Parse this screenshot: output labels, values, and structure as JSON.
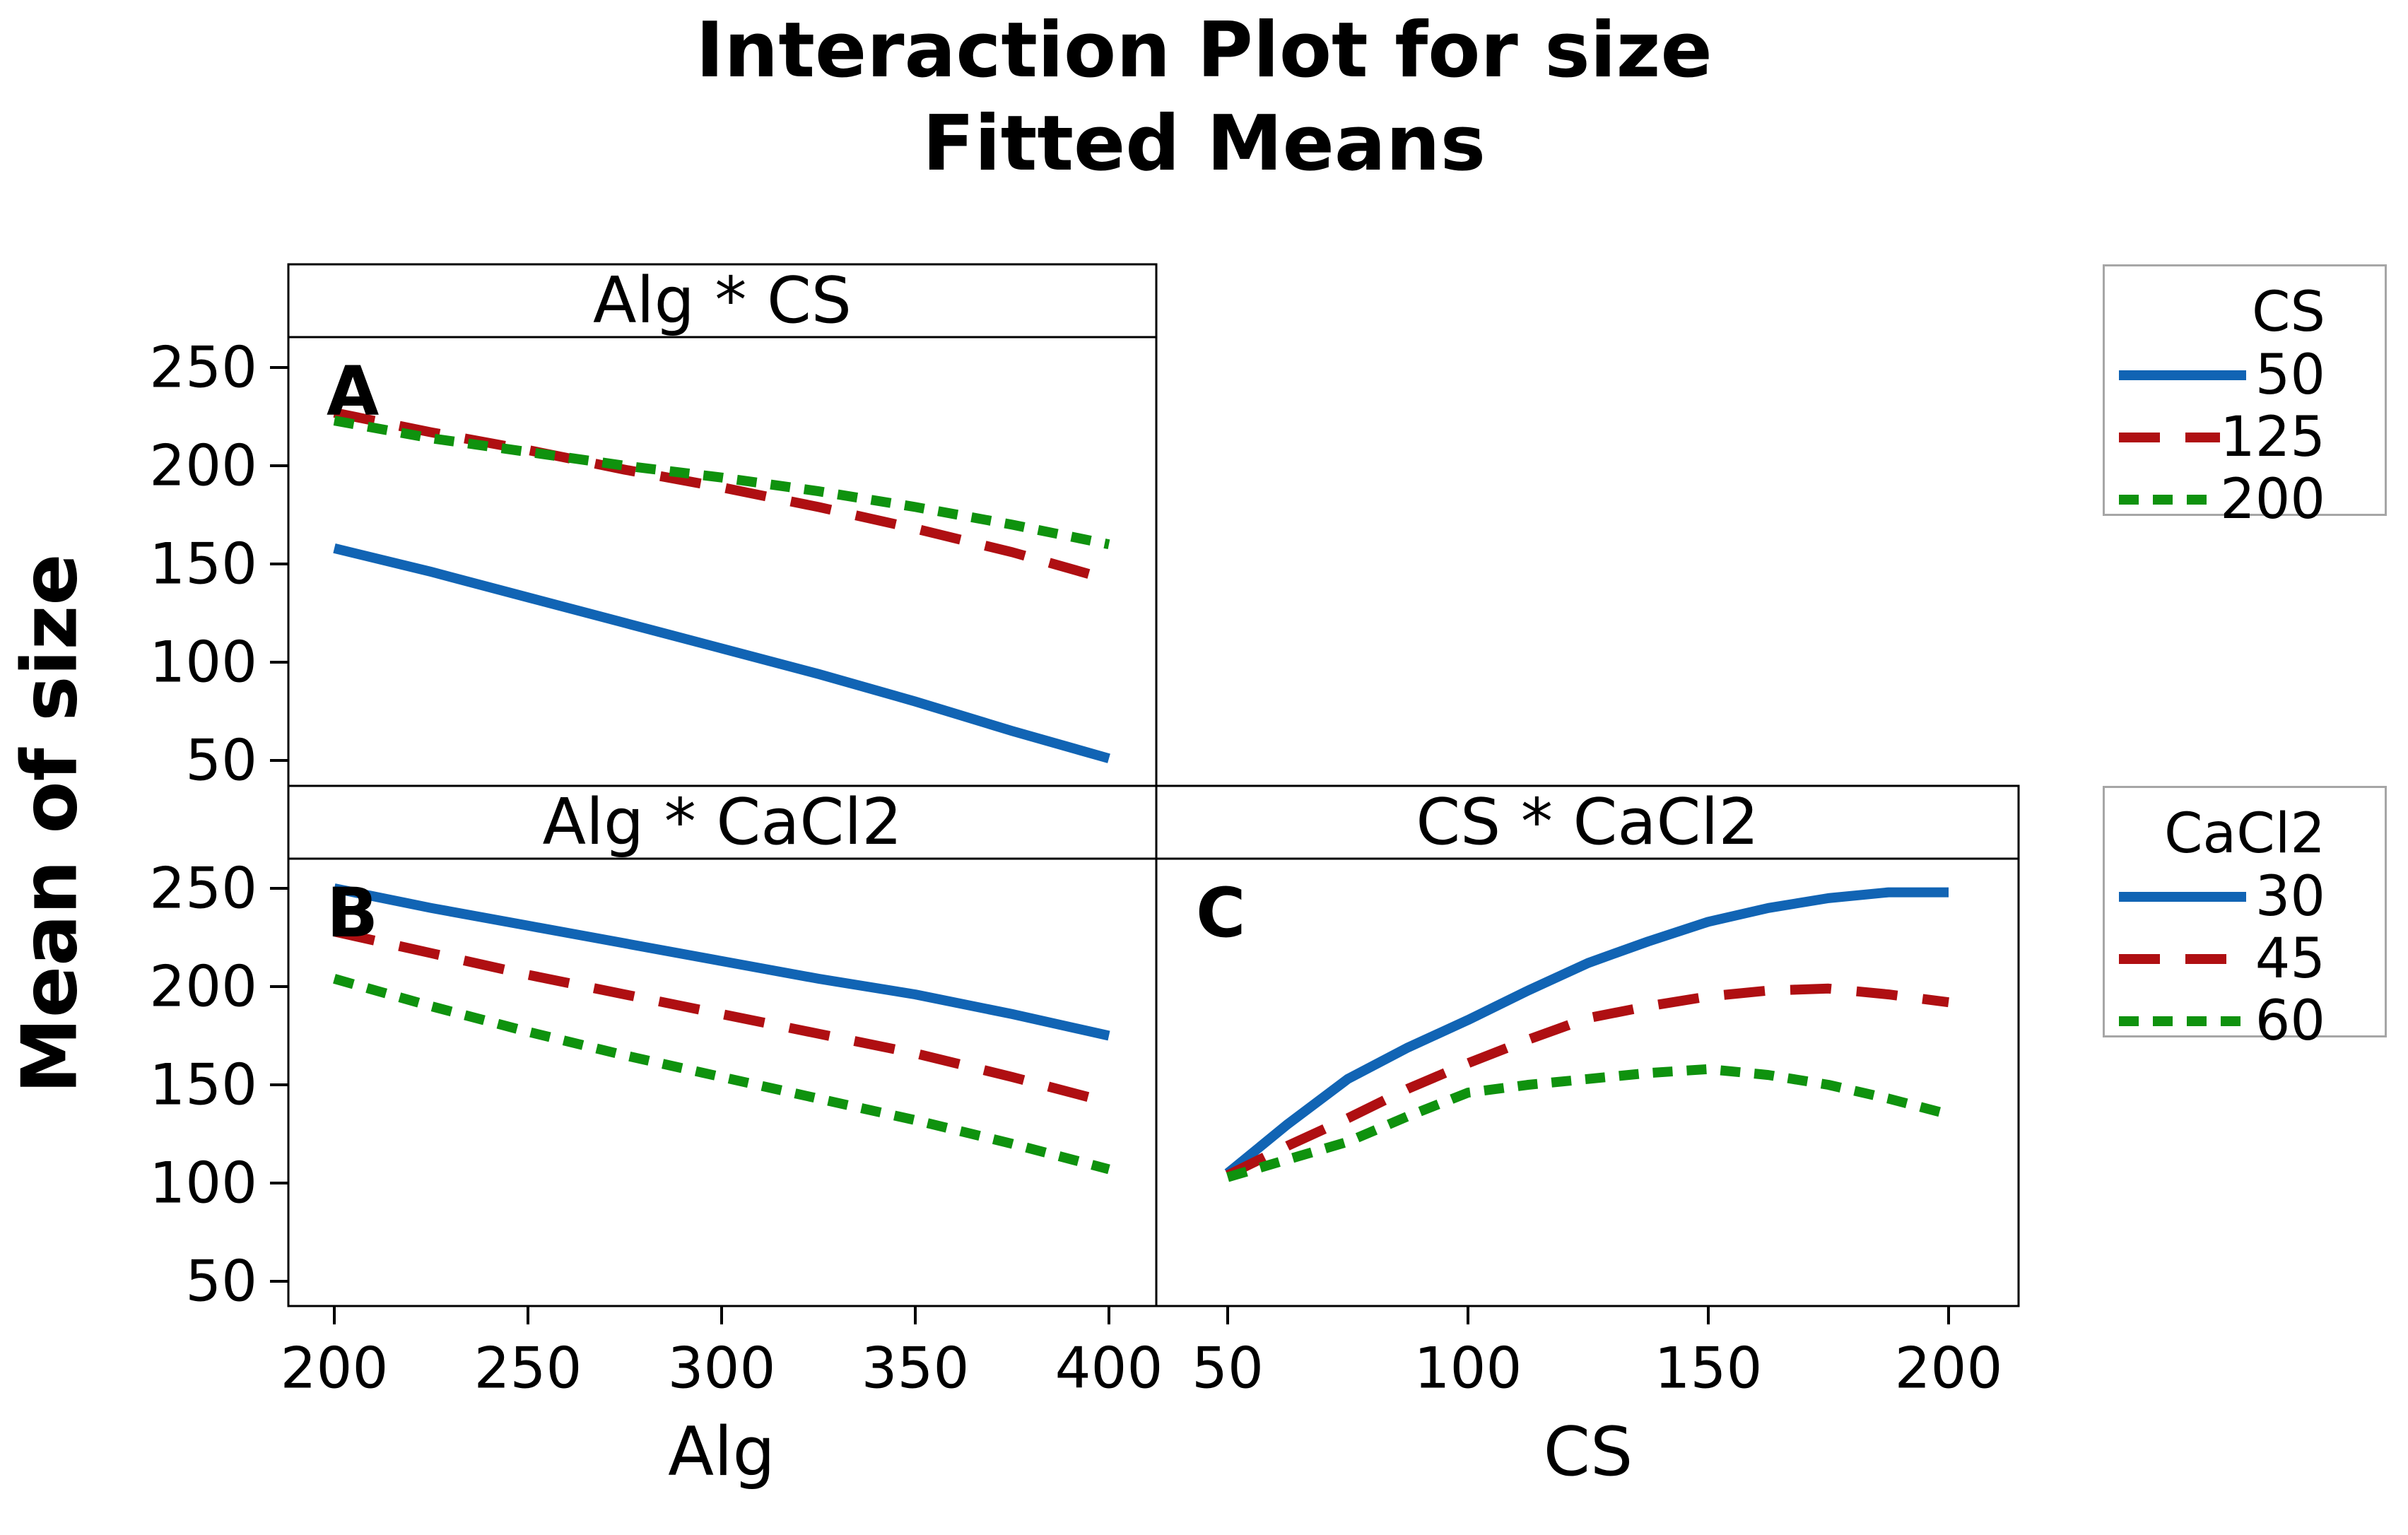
{
  "title": {
    "line1": "Interaction Plot for size",
    "line2": "Fitted Means"
  },
  "ylabel": "Mean of size",
  "colors": {
    "blue": "#1164b4",
    "red": "#af0f12",
    "green": "#0f920e",
    "panel_border": "#000000",
    "legend_border": "#a6a6a6",
    "text": "#000000"
  },
  "legends": [
    {
      "title": "CS",
      "items": [
        {
          "label": "50",
          "color": "blue",
          "dash": "solid"
        },
        {
          "label": "125",
          "color": "red",
          "dash": "dash"
        },
        {
          "label": "200",
          "color": "green",
          "dash": "dot"
        }
      ]
    },
    {
      "title": "CaCl2",
      "items": [
        {
          "label": "30",
          "color": "blue",
          "dash": "solid"
        },
        {
          "label": "45",
          "color": "red",
          "dash": "dash"
        },
        {
          "label": "60",
          "color": "green",
          "dash": "dot"
        }
      ]
    }
  ],
  "chart_data": [
    {
      "type": "line",
      "panel_label": "A",
      "title": "Alg * CS",
      "xlabel": "",
      "ylabel": "Mean of size",
      "x": [
        200,
        225,
        250,
        275,
        300,
        325,
        350,
        375,
        400
      ],
      "xticks": [],
      "yticks": [
        250,
        200,
        150,
        100,
        50
      ],
      "xlim": [
        200,
        400
      ],
      "ylim": [
        37,
        265
      ],
      "grid": false,
      "legend": "CS (top-right box)",
      "series": [
        {
          "name": "50",
          "color": "blue",
          "dash": "solid",
          "values": [
            158,
            146,
            133,
            120,
            107,
            94,
            80,
            65,
            51
          ]
        },
        {
          "name": "125",
          "color": "red",
          "dash": "dash",
          "values": [
            227,
            217,
            208,
            198,
            189,
            179,
            168,
            156,
            142
          ]
        },
        {
          "name": "200",
          "color": "green",
          "dash": "dot",
          "values": [
            223,
            214,
            207,
            200,
            194,
            187,
            179,
            170,
            160
          ]
        }
      ]
    },
    {
      "type": "line",
      "panel_label": "B",
      "title": "Alg * CaCl2",
      "xlabel": "Alg",
      "ylabel": "Mean of size",
      "x": [
        200,
        225,
        250,
        275,
        300,
        325,
        350,
        375,
        400
      ],
      "xticks": [
        200,
        250,
        300,
        350,
        400
      ],
      "yticks": [
        250,
        200,
        150,
        100,
        50
      ],
      "xlim": [
        200,
        400
      ],
      "ylim": [
        37,
        265
      ],
      "grid": false,
      "legend": "CaCl2 (middle-right box)",
      "series": [
        {
          "name": "30",
          "color": "blue",
          "dash": "solid",
          "values": [
            250,
            240,
            231,
            222,
            213,
            204,
            196,
            186,
            175
          ]
        },
        {
          "name": "45",
          "color": "red",
          "dash": "dash",
          "values": [
            228,
            217,
            206,
            196,
            186,
            176,
            166,
            154,
            141
          ]
        },
        {
          "name": "60",
          "color": "green",
          "dash": "dot",
          "values": [
            204,
            190,
            177,
            165,
            154,
            143,
            132,
            120,
            107
          ]
        }
      ]
    },
    {
      "type": "line",
      "panel_label": "C",
      "title": "CS * CaCl2",
      "xlabel": "CS",
      "ylabel": "Mean of size",
      "x": [
        50,
        62.5,
        75,
        87.5,
        100,
        112.5,
        125,
        137.5,
        150,
        162.5,
        175,
        187.5,
        200
      ],
      "xticks": [
        50,
        100,
        150,
        200
      ],
      "yticks": [
        250,
        200,
        150,
        100,
        50
      ],
      "xlim": [
        50,
        200
      ],
      "ylim": [
        37,
        265
      ],
      "grid": false,
      "legend": "CaCl2 (middle-right box)",
      "series": [
        {
          "name": "30",
          "color": "blue",
          "dash": "solid",
          "values": [
            105,
            130,
            153,
            169,
            183,
            198,
            212,
            223,
            233,
            240,
            245,
            248,
            248
          ]
        },
        {
          "name": "45",
          "color": "red",
          "dash": "dash",
          "values": [
            104,
            119,
            133,
            148,
            161,
            173,
            184,
            190,
            195,
            198,
            199,
            196,
            192
          ]
        },
        {
          "name": "60",
          "color": "green",
          "dash": "dot",
          "values": [
            103,
            112,
            121,
            134,
            146,
            150,
            153,
            156,
            158,
            155,
            150,
            143,
            135
          ]
        }
      ]
    }
  ]
}
